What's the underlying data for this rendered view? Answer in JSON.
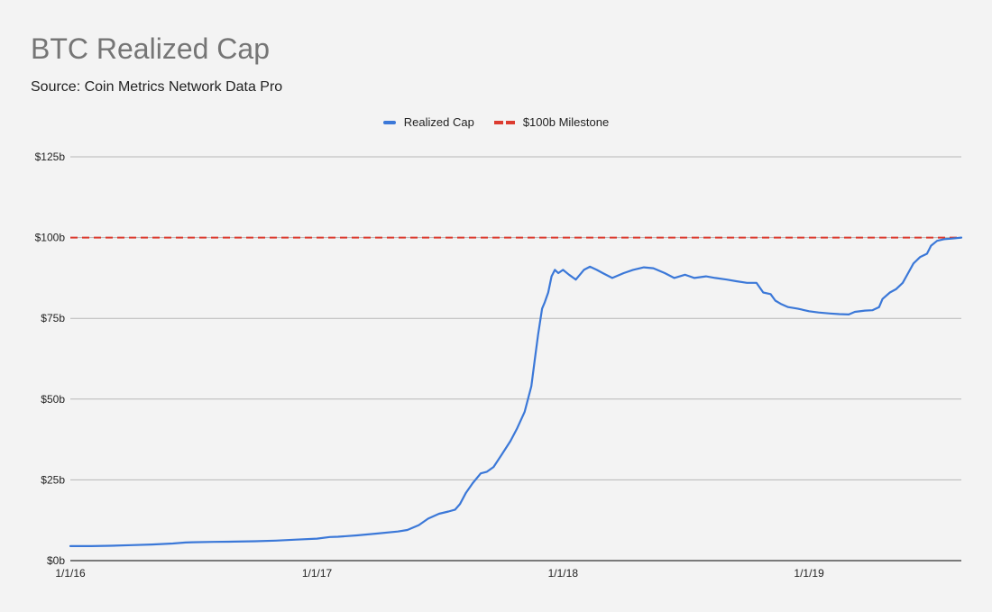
{
  "chart_data": {
    "type": "line",
    "title": "BTC Realized Cap",
    "subtitle": "Source: Coin Metrics Network Data Pro",
    "xlabel": "",
    "ylabel": "",
    "x_ticks": [
      "1/1/16",
      "1/1/17",
      "1/1/18",
      "1/1/19"
    ],
    "x_range": [
      "2016-01-01",
      "2019-08-15"
    ],
    "y_ticks": [
      "$0b",
      "$25b",
      "$50b",
      "$75b",
      "$100b",
      "$125b"
    ],
    "y_tick_values": [
      0,
      25,
      50,
      75,
      100,
      125
    ],
    "ylim": [
      0,
      125
    ],
    "grid": true,
    "legend_position": "top",
    "series": [
      {
        "name": "Realized Cap",
        "color": "#3b78d8",
        "points": [
          [
            "2016-01-01",
            4.5
          ],
          [
            "2016-02-01",
            4.5
          ],
          [
            "2016-03-01",
            4.6
          ],
          [
            "2016-04-01",
            4.8
          ],
          [
            "2016-05-01",
            5.0
          ],
          [
            "2016-06-01",
            5.3
          ],
          [
            "2016-06-20",
            5.6
          ],
          [
            "2016-07-01",
            5.7
          ],
          [
            "2016-08-01",
            5.8
          ],
          [
            "2016-09-01",
            5.9
          ],
          [
            "2016-10-01",
            6.0
          ],
          [
            "2016-11-01",
            6.2
          ],
          [
            "2016-12-01",
            6.5
          ],
          [
            "2017-01-01",
            6.8
          ],
          [
            "2017-01-20",
            7.3
          ],
          [
            "2017-02-01",
            7.4
          ],
          [
            "2017-03-01",
            7.8
          ],
          [
            "2017-04-01",
            8.4
          ],
          [
            "2017-05-01",
            9.0
          ],
          [
            "2017-05-15",
            9.5
          ],
          [
            "2017-06-01",
            11.0
          ],
          [
            "2017-06-15",
            13.0
          ],
          [
            "2017-07-01",
            14.5
          ],
          [
            "2017-07-15",
            15.2
          ],
          [
            "2017-07-25",
            15.8
          ],
          [
            "2017-08-01",
            17.5
          ],
          [
            "2017-08-10",
            21.0
          ],
          [
            "2017-08-20",
            24.0
          ],
          [
            "2017-09-01",
            27.0
          ],
          [
            "2017-09-10",
            27.5
          ],
          [
            "2017-09-20",
            29.0
          ],
          [
            "2017-10-01",
            32.5
          ],
          [
            "2017-10-15",
            37.0
          ],
          [
            "2017-10-25",
            41.0
          ],
          [
            "2017-11-05",
            46.0
          ],
          [
            "2017-11-15",
            54.0
          ],
          [
            "2017-11-20",
            62.0
          ],
          [
            "2017-11-25",
            70.0
          ],
          [
            "2017-12-01",
            78.0
          ],
          [
            "2017-12-05",
            80.0
          ],
          [
            "2017-12-10",
            83.0
          ],
          [
            "2017-12-15",
            88.0
          ],
          [
            "2017-12-20",
            90.0
          ],
          [
            "2017-12-25",
            89.0
          ],
          [
            "2018-01-01",
            90.0
          ],
          [
            "2018-01-10",
            88.5
          ],
          [
            "2018-01-20",
            87.0
          ],
          [
            "2018-02-01",
            90.0
          ],
          [
            "2018-02-10",
            91.0
          ],
          [
            "2018-02-20",
            90.0
          ],
          [
            "2018-03-01",
            89.0
          ],
          [
            "2018-03-15",
            87.5
          ],
          [
            "2018-04-01",
            89.0
          ],
          [
            "2018-04-15",
            90.0
          ],
          [
            "2018-05-01",
            90.8
          ],
          [
            "2018-05-15",
            90.5
          ],
          [
            "2018-06-01",
            89.0
          ],
          [
            "2018-06-15",
            87.5
          ],
          [
            "2018-07-01",
            88.5
          ],
          [
            "2018-07-15",
            87.5
          ],
          [
            "2018-08-01",
            88.0
          ],
          [
            "2018-08-15",
            87.5
          ],
          [
            "2018-09-01",
            87.0
          ],
          [
            "2018-09-15",
            86.5
          ],
          [
            "2018-10-01",
            86.0
          ],
          [
            "2018-10-15",
            86.0
          ],
          [
            "2018-10-25",
            83.0
          ],
          [
            "2018-11-05",
            82.5
          ],
          [
            "2018-11-12",
            80.5
          ],
          [
            "2018-11-20",
            79.5
          ],
          [
            "2018-12-01",
            78.5
          ],
          [
            "2018-12-15",
            78.0
          ],
          [
            "2019-01-01",
            77.2
          ],
          [
            "2019-01-15",
            76.8
          ],
          [
            "2019-02-01",
            76.5
          ],
          [
            "2019-02-15",
            76.3
          ],
          [
            "2019-03-01",
            76.2
          ],
          [
            "2019-03-10",
            77.0
          ],
          [
            "2019-03-25",
            77.4
          ],
          [
            "2019-04-05",
            77.5
          ],
          [
            "2019-04-15",
            78.5
          ],
          [
            "2019-04-20",
            81.0
          ],
          [
            "2019-05-01",
            83.0
          ],
          [
            "2019-05-10",
            84.0
          ],
          [
            "2019-05-20",
            86.0
          ],
          [
            "2019-05-28",
            89.0
          ],
          [
            "2019-06-05",
            92.0
          ],
          [
            "2019-06-15",
            94.0
          ],
          [
            "2019-06-25",
            95.0
          ],
          [
            "2019-07-01",
            97.5
          ],
          [
            "2019-07-10",
            99.0
          ],
          [
            "2019-07-20",
            99.5
          ],
          [
            "2019-08-01",
            99.7
          ],
          [
            "2019-08-15",
            100.0
          ]
        ]
      },
      {
        "name": "$100b Milestone",
        "color": "#dc3b2f",
        "style": "dashed",
        "value": 100
      }
    ]
  },
  "legend": {
    "items": [
      {
        "label": "Realized Cap",
        "color": "#3b78d8",
        "style": "solid"
      },
      {
        "label": "$100b Milestone",
        "color": "#dc3b2f",
        "style": "dashed"
      }
    ]
  }
}
